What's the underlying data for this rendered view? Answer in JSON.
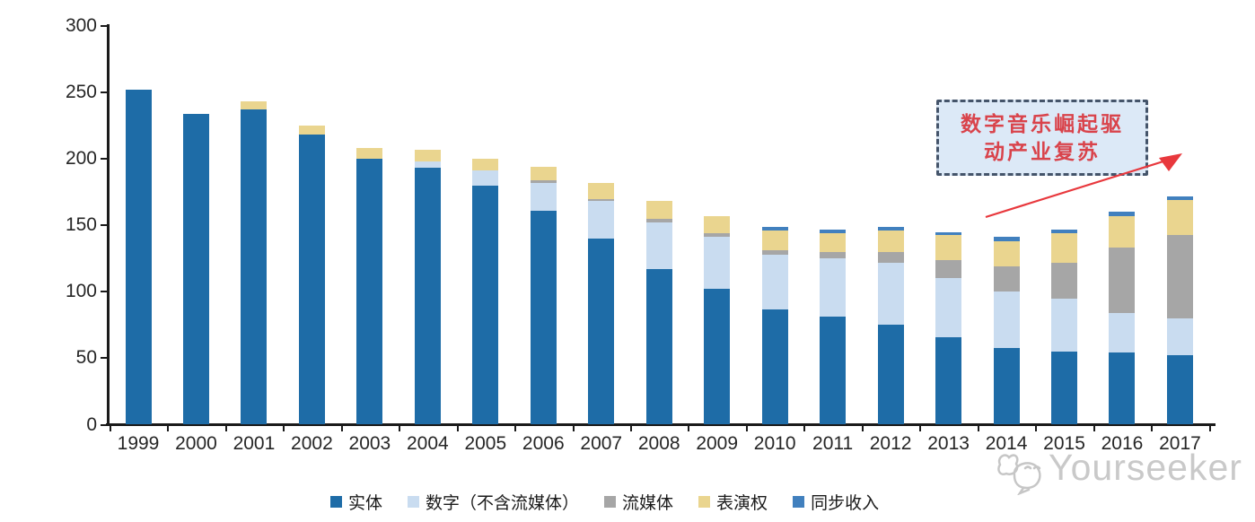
{
  "chart_data": {
    "type": "bar",
    "stacked": true,
    "title": "",
    "categories": [
      "1999",
      "2000",
      "2001",
      "2002",
      "2003",
      "2004",
      "2005",
      "2006",
      "2007",
      "2008",
      "2009",
      "2010",
      "2011",
      "2012",
      "2013",
      "2014",
      "2015",
      "2016",
      "2017"
    ],
    "series": [
      {
        "name": "实体",
        "color": "#1E6CA7",
        "values": [
          252,
          234,
          237,
          218,
          200,
          193,
          180,
          161,
          140,
          117,
          102,
          87,
          81,
          75,
          66,
          58,
          55,
          54,
          52
        ]
      },
      {
        "name": "数字（不含流媒体）",
        "color": "#C9DCF0",
        "values": [
          0,
          0,
          0,
          0,
          0,
          5,
          11,
          21,
          28,
          35,
          39,
          41,
          44,
          47,
          44,
          42,
          40,
          30,
          28
        ]
      },
      {
        "name": "流媒体",
        "color": "#A6A6A6",
        "values": [
          0,
          0,
          0,
          0,
          0,
          0,
          0,
          2,
          2,
          3,
          3,
          3,
          5,
          8,
          14,
          19,
          27,
          49,
          63
        ]
      },
      {
        "name": "表演权",
        "color": "#EAD58F",
        "values": [
          0,
          0,
          6,
          7,
          8,
          9,
          9,
          10,
          12,
          13,
          13,
          15,
          14,
          16,
          19,
          19,
          22,
          24,
          26
        ]
      },
      {
        "name": "同步收入",
        "color": "#4180BE",
        "values": [
          0,
          0,
          0,
          0,
          0,
          0,
          0,
          0,
          0,
          0,
          0,
          3,
          3,
          3,
          2,
          3,
          3,
          3,
          3
        ]
      }
    ],
    "ylim": [
      0,
      300
    ],
    "yticks": [
      0,
      50,
      100,
      150,
      200,
      250,
      300
    ],
    "grid": false,
    "legend_position": "bottom",
    "axis_color": "#1A1A1A",
    "tick_label_color": "#262626"
  },
  "annotation": {
    "line1": "数字音乐崛起驱",
    "line2": "动产业复苏",
    "text_color": "#D9434B",
    "box_fill": "#DCE9F7",
    "box_border_color": "#44546A",
    "arrow_color": "#E8383D"
  },
  "watermark": {
    "text": "Yourseeker",
    "logo": "cat-face-outline",
    "color": "#C9C9C9"
  }
}
